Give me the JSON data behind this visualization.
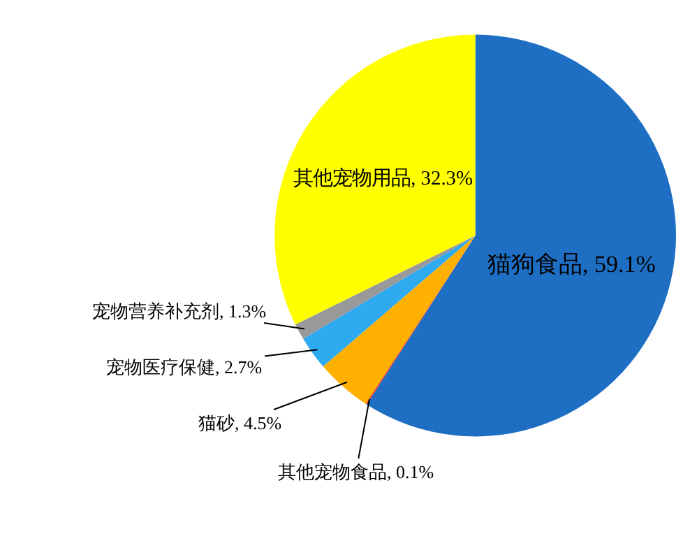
{
  "chart_data": {
    "type": "pie",
    "categories": [
      "猫狗食品",
      "其他宠物食品",
      "猫砂",
      "宠物医疗保健",
      "宠物营养补充剂",
      "其他宠物用品"
    ],
    "values": [
      59.1,
      0.1,
      4.5,
      2.7,
      1.3,
      32.3
    ],
    "colors": [
      "#1e6fc3",
      "#e8302a",
      "#ffb000",
      "#2eaaf0",
      "#999999",
      "#ffff00"
    ],
    "value_labels": [
      "59.1%",
      "0.1%",
      "4.5%",
      "2.7%",
      "1.3%",
      "32.3%"
    ]
  }
}
